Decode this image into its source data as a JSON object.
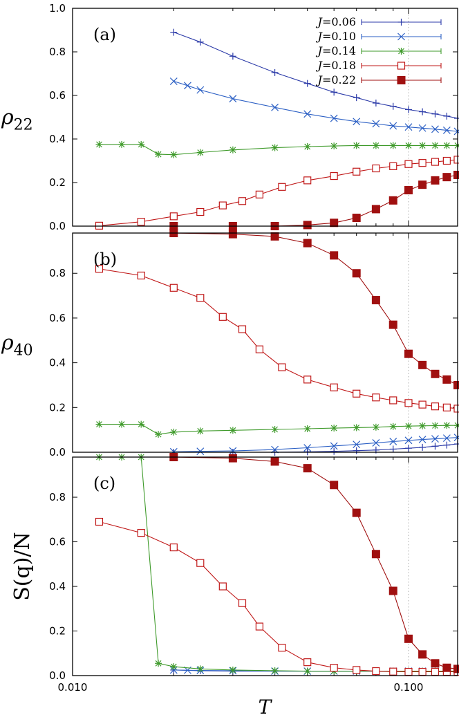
{
  "figure": {
    "x_axis_label": "T",
    "x_tick_labels": [
      "0.010",
      "0.100"
    ],
    "x_ticks": [
      0.01,
      0.1
    ],
    "xlim": [
      0.01,
      0.14
    ],
    "x_scale": "log",
    "vertical_gridline_at": 0.1,
    "legend": {
      "placement": "top-right of panel (a)",
      "entries": [
        {
          "label": "J=0.06",
          "italic_prefix": "J",
          "rest": "=0.06",
          "color": "#2b3aa8",
          "marker": "plus"
        },
        {
          "label": "J=0.10",
          "italic_prefix": "J",
          "rest": "=0.10",
          "color": "#2b5fc4",
          "marker": "cross"
        },
        {
          "label": "J=0.14",
          "italic_prefix": "J",
          "rest": "=0.14",
          "color": "#3e9a2a",
          "marker": "star"
        },
        {
          "label": "J=0.18",
          "italic_prefix": "J",
          "rest": "=0.18",
          "color": "#c01818",
          "marker": "open-square"
        },
        {
          "label": "J=0.22",
          "italic_prefix": "J",
          "rest": "=0.22",
          "color": "#a01010",
          "marker": "filled-square"
        }
      ]
    }
  },
  "panels": [
    {
      "tag": "(a)",
      "ylabel_main": "ρ",
      "ylabel_sub": "22",
      "ylabel_plain": "",
      "yticks": [
        "0.0",
        "0.2",
        "0.4",
        "0.6",
        "0.8",
        "1.0"
      ]
    },
    {
      "tag": "(b)",
      "ylabel_main": "ρ",
      "ylabel_sub": "40",
      "ylabel_plain": "",
      "yticks": [
        "0.0",
        "0.2",
        "0.4",
        "0.6",
        "0.8"
      ]
    },
    {
      "tag": "(c)",
      "ylabel_main": "",
      "ylabel_sub": "",
      "ylabel_plain": "S(q)/N",
      "yticks": [
        "0.0",
        "0.2",
        "0.4",
        "0.6",
        "0.8"
      ]
    }
  ],
  "chart_data": [
    {
      "type": "line",
      "title": "(a)",
      "xlabel": "T",
      "ylabel": "ρ22",
      "x_scale": "log",
      "xlim": [
        0.01,
        0.14
      ],
      "ylim": [
        0,
        1.0
      ],
      "grid": "vertical line at 0.1",
      "legend_position": "top-right",
      "series": [
        {
          "name": "J=0.06",
          "x": [
            0.02,
            0.024,
            0.03,
            0.04,
            0.05,
            0.06,
            0.07,
            0.08,
            0.09,
            0.1,
            0.11,
            0.12,
            0.13,
            0.14
          ],
          "y": [
            0.89,
            0.845,
            0.78,
            0.705,
            0.655,
            0.615,
            0.59,
            0.565,
            0.55,
            0.535,
            0.525,
            0.515,
            0.505,
            0.495
          ]
        },
        {
          "name": "J=0.10",
          "x": [
            0.02,
            0.022,
            0.024,
            0.03,
            0.04,
            0.05,
            0.06,
            0.07,
            0.08,
            0.09,
            0.1,
            0.11,
            0.12,
            0.13,
            0.14
          ],
          "y": [
            0.665,
            0.645,
            0.625,
            0.585,
            0.545,
            0.515,
            0.495,
            0.48,
            0.47,
            0.46,
            0.455,
            0.45,
            0.445,
            0.44,
            0.435
          ]
        },
        {
          "name": "J=0.14",
          "x": [
            0.012,
            0.014,
            0.016,
            0.018,
            0.02,
            0.024,
            0.03,
            0.04,
            0.05,
            0.06,
            0.07,
            0.08,
            0.09,
            0.1,
            0.11,
            0.12,
            0.13,
            0.14
          ],
          "y": [
            0.375,
            0.375,
            0.375,
            0.33,
            0.328,
            0.338,
            0.35,
            0.36,
            0.365,
            0.368,
            0.37,
            0.37,
            0.37,
            0.37,
            0.37,
            0.37,
            0.37,
            0.37
          ]
        },
        {
          "name": "J=0.18",
          "x": [
            0.012,
            0.016,
            0.02,
            0.024,
            0.028,
            0.032,
            0.036,
            0.042,
            0.05,
            0.06,
            0.07,
            0.08,
            0.09,
            0.1,
            0.11,
            0.12,
            0.13,
            0.14
          ],
          "y": [
            0.002,
            0.02,
            0.045,
            0.065,
            0.095,
            0.115,
            0.145,
            0.18,
            0.21,
            0.23,
            0.25,
            0.265,
            0.275,
            0.285,
            0.29,
            0.295,
            0.3,
            0.305
          ]
        },
        {
          "name": "J=0.22",
          "x": [
            0.02,
            0.03,
            0.04,
            0.05,
            0.06,
            0.07,
            0.08,
            0.09,
            0.1,
            0.11,
            0.12,
            0.13,
            0.14
          ],
          "y": [
            0.0,
            0.0,
            0.0,
            0.005,
            0.015,
            0.038,
            0.078,
            0.118,
            0.165,
            0.19,
            0.21,
            0.225,
            0.235
          ]
        }
      ]
    },
    {
      "type": "line",
      "title": "(b)",
      "xlabel": "T",
      "ylabel": "ρ40",
      "x_scale": "log",
      "xlim": [
        0.01,
        0.14
      ],
      "ylim": [
        0,
        0.98
      ],
      "grid": "vertical line at 0.1",
      "series": [
        {
          "name": "J=0.06",
          "x": [
            0.02,
            0.03,
            0.04,
            0.05,
            0.06,
            0.07,
            0.08,
            0.09,
            0.1,
            0.11,
            0.12,
            0.13,
            0.14
          ],
          "y": [
            0.0,
            0.0,
            0.0,
            0.002,
            0.004,
            0.007,
            0.01,
            0.014,
            0.018,
            0.022,
            0.027,
            0.032,
            0.037
          ]
        },
        {
          "name": "J=0.10",
          "x": [
            0.02,
            0.024,
            0.03,
            0.04,
            0.05,
            0.06,
            0.07,
            0.08,
            0.09,
            0.1,
            0.11,
            0.12,
            0.13,
            0.14
          ],
          "y": [
            0.002,
            0.004,
            0.006,
            0.012,
            0.02,
            0.028,
            0.035,
            0.042,
            0.048,
            0.053,
            0.057,
            0.06,
            0.063,
            0.066
          ]
        },
        {
          "name": "J=0.14",
          "x": [
            0.012,
            0.014,
            0.016,
            0.018,
            0.02,
            0.024,
            0.03,
            0.04,
            0.05,
            0.06,
            0.07,
            0.08,
            0.09,
            0.1,
            0.11,
            0.12,
            0.13,
            0.14
          ],
          "y": [
            0.125,
            0.125,
            0.125,
            0.08,
            0.09,
            0.095,
            0.098,
            0.102,
            0.105,
            0.108,
            0.11,
            0.112,
            0.115,
            0.117,
            0.118,
            0.119,
            0.12,
            0.12
          ]
        },
        {
          "name": "J=0.18",
          "x": [
            0.012,
            0.016,
            0.02,
            0.024,
            0.028,
            0.032,
            0.036,
            0.042,
            0.05,
            0.06,
            0.07,
            0.08,
            0.09,
            0.1,
            0.11,
            0.12,
            0.13,
            0.14
          ],
          "y": [
            0.82,
            0.79,
            0.735,
            0.69,
            0.605,
            0.55,
            0.46,
            0.38,
            0.325,
            0.29,
            0.262,
            0.245,
            0.232,
            0.22,
            0.213,
            0.205,
            0.2,
            0.195
          ]
        },
        {
          "name": "J=0.22",
          "x": [
            0.02,
            0.03,
            0.04,
            0.05,
            0.06,
            0.07,
            0.08,
            0.09,
            0.1,
            0.11,
            0.12,
            0.13,
            0.14
          ],
          "y": [
            0.98,
            0.975,
            0.965,
            0.935,
            0.88,
            0.8,
            0.68,
            0.57,
            0.44,
            0.39,
            0.35,
            0.325,
            0.3
          ]
        }
      ]
    },
    {
      "type": "line",
      "title": "(c)",
      "xlabel": "T",
      "ylabel": "S(q)/N",
      "x_scale": "log",
      "xlim": [
        0.01,
        0.14
      ],
      "ylim": [
        0,
        0.98
      ],
      "grid": "vertical line at 0.1",
      "series": [
        {
          "name": "J=0.06",
          "x": [
            0.02,
            0.024,
            0.03,
            0.04,
            0.05,
            0.06,
            0.07,
            0.08,
            0.09,
            0.1,
            0.11,
            0.12,
            0.13,
            0.14
          ],
          "y": [
            0.025,
            0.022,
            0.02,
            0.02,
            0.02,
            0.02,
            0.02,
            0.02,
            0.02,
            0.02,
            0.02,
            0.02,
            0.02,
            0.02
          ]
        },
        {
          "name": "J=0.10",
          "x": [
            0.02,
            0.022,
            0.024,
            0.03,
            0.04,
            0.05,
            0.06,
            0.07,
            0.08,
            0.09,
            0.1,
            0.11,
            0.12,
            0.13,
            0.14
          ],
          "y": [
            0.025,
            0.024,
            0.023,
            0.022,
            0.02,
            0.02,
            0.02,
            0.02,
            0.02,
            0.02,
            0.02,
            0.02,
            0.02,
            0.02,
            0.02
          ]
        },
        {
          "name": "J=0.14",
          "x": [
            0.012,
            0.014,
            0.016,
            0.018,
            0.02,
            0.024,
            0.03,
            0.04,
            0.05,
            0.06,
            0.07,
            0.08,
            0.09,
            0.1,
            0.11,
            0.12,
            0.13,
            0.14
          ],
          "y": [
            0.98,
            0.98,
            0.98,
            0.055,
            0.04,
            0.03,
            0.025,
            0.022,
            0.02,
            0.02,
            0.02,
            0.02,
            0.02,
            0.02,
            0.02,
            0.02,
            0.02,
            0.02
          ]
        },
        {
          "name": "J=0.18",
          "x": [
            0.012,
            0.016,
            0.02,
            0.024,
            0.028,
            0.032,
            0.036,
            0.042,
            0.05,
            0.06,
            0.07,
            0.08,
            0.09,
            0.1,
            0.11,
            0.12,
            0.13,
            0.14
          ],
          "y": [
            0.69,
            0.64,
            0.575,
            0.505,
            0.4,
            0.325,
            0.22,
            0.125,
            0.06,
            0.035,
            0.025,
            0.02,
            0.018,
            0.017,
            0.017,
            0.017,
            0.017,
            0.017
          ]
        },
        {
          "name": "J=0.22",
          "x": [
            0.02,
            0.03,
            0.04,
            0.05,
            0.06,
            0.07,
            0.08,
            0.09,
            0.1,
            0.11,
            0.12,
            0.13,
            0.14
          ],
          "y": [
            0.98,
            0.975,
            0.96,
            0.93,
            0.855,
            0.73,
            0.545,
            0.38,
            0.165,
            0.095,
            0.055,
            0.035,
            0.03
          ]
        }
      ]
    }
  ]
}
